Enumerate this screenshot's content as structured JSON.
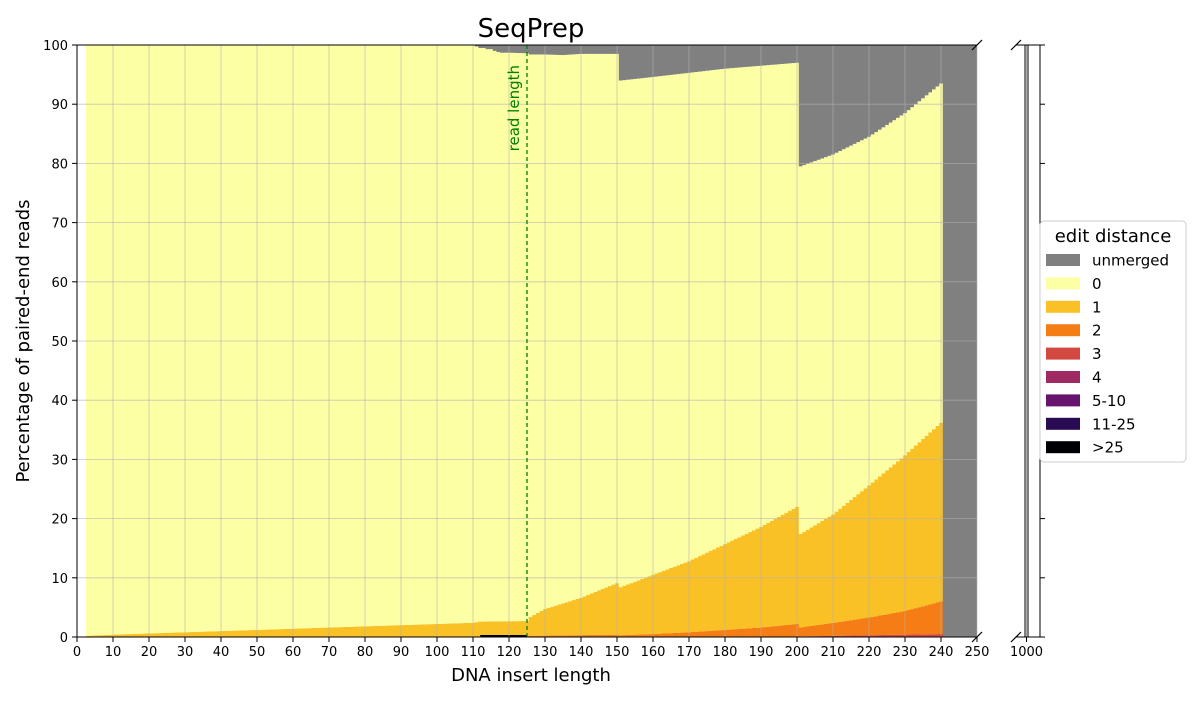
{
  "chart_data": {
    "type": "area",
    "title": "SeqPrep",
    "xlabel": "DNA insert length",
    "ylabel": "Percentage of paired-end reads",
    "xlim": [
      0,
      250
    ],
    "ylim": [
      0,
      100
    ],
    "x_ticks": [
      "0",
      "10",
      "20",
      "30",
      "40",
      "50",
      "60",
      "70",
      "80",
      "90",
      "100",
      "110",
      "120",
      "130",
      "140",
      "150",
      "160",
      "170",
      "180",
      "190",
      "200",
      "210",
      "220",
      "230",
      "240",
      "250"
    ],
    "y_ticks": [
      "0",
      "10",
      "20",
      "30",
      "40",
      "50",
      "60",
      "70",
      "80",
      "90",
      "100"
    ],
    "broken_axis_tick": "1000",
    "grid": true,
    "stacked": true,
    "annotation": {
      "text": "read length",
      "x": 125,
      "color": "#008000",
      "style": "dashed-vertical-line"
    },
    "legend": {
      "title": "edit distance",
      "placement": "right",
      "entries": [
        {
          "label": "unmerged",
          "color": "#808080"
        },
        {
          "label": "0",
          "color": "#fcffa4"
        },
        {
          "label": "1",
          "color": "#fac127"
        },
        {
          "label": "2",
          "color": "#f57d15"
        },
        {
          "label": "3",
          "color": "#d44842"
        },
        {
          "label": "4",
          "color": "#9f2a63"
        },
        {
          "label": "5-10",
          "color": "#65156e"
        },
        {
          "label": "11-25",
          "color": "#280b53"
        },
        {
          "label": ">25",
          "color": "#000004"
        }
      ]
    },
    "series": [
      {
        "name": "1",
        "x": [
          3,
          10,
          20,
          30,
          40,
          50,
          60,
          70,
          80,
          90,
          100,
          110,
          112,
          125,
          126,
          130,
          140,
          150,
          151,
          160,
          170,
          180,
          190,
          200,
          201,
          210,
          220,
          230,
          240
        ],
        "values": [
          0.2,
          0.4,
          0.6,
          0.8,
          1.0,
          1.2,
          1.4,
          1.6,
          1.8,
          2.0,
          2.2,
          2.4,
          2.6,
          2.7,
          3.2,
          4.5,
          6.3,
          8.7,
          8.1,
          10.0,
          12.0,
          14.5,
          17.0,
          19.8,
          15.8,
          18.3,
          22.3,
          26.3,
          30.2
        ]
      },
      {
        "name": "2",
        "x": [
          3,
          125,
          126,
          150,
          151,
          160,
          170,
          180,
          190,
          200,
          201,
          210,
          220,
          230,
          240
        ],
        "values": [
          0,
          0,
          0.2,
          0.4,
          0.3,
          0.5,
          0.8,
          1.2,
          1.6,
          2.2,
          1.5,
          2.2,
          3.0,
          4.0,
          5.5
        ]
      },
      {
        "name": "3",
        "x": [
          3,
          200,
          201,
          240
        ],
        "values": [
          0,
          0,
          0.1,
          0.5
        ]
      },
      {
        "name": "0 top (unmerged above)",
        "x": [
          3,
          100,
          110,
          112,
          113,
          114,
          115,
          116,
          117,
          118,
          120,
          125,
          126,
          130,
          135,
          140,
          150,
          151,
          160,
          170,
          180,
          190,
          200,
          201,
          210,
          220,
          230,
          240
        ],
        "values": [
          100,
          100,
          100,
          99.5,
          99.5,
          99.3,
          99.3,
          99.0,
          98.8,
          98.7,
          98.7,
          98.6,
          98.4,
          98.4,
          98.3,
          98.5,
          98.5,
          94.0,
          94.6,
          95.3,
          96.0,
          96.5,
          97.0,
          79.5,
          81.5,
          84.5,
          88.5,
          93.5
        ]
      }
    ],
    "unmerged_beyond_240": 100,
    "broken_axis_bar": {
      "x": "1000",
      "unmerged": 100
    }
  }
}
